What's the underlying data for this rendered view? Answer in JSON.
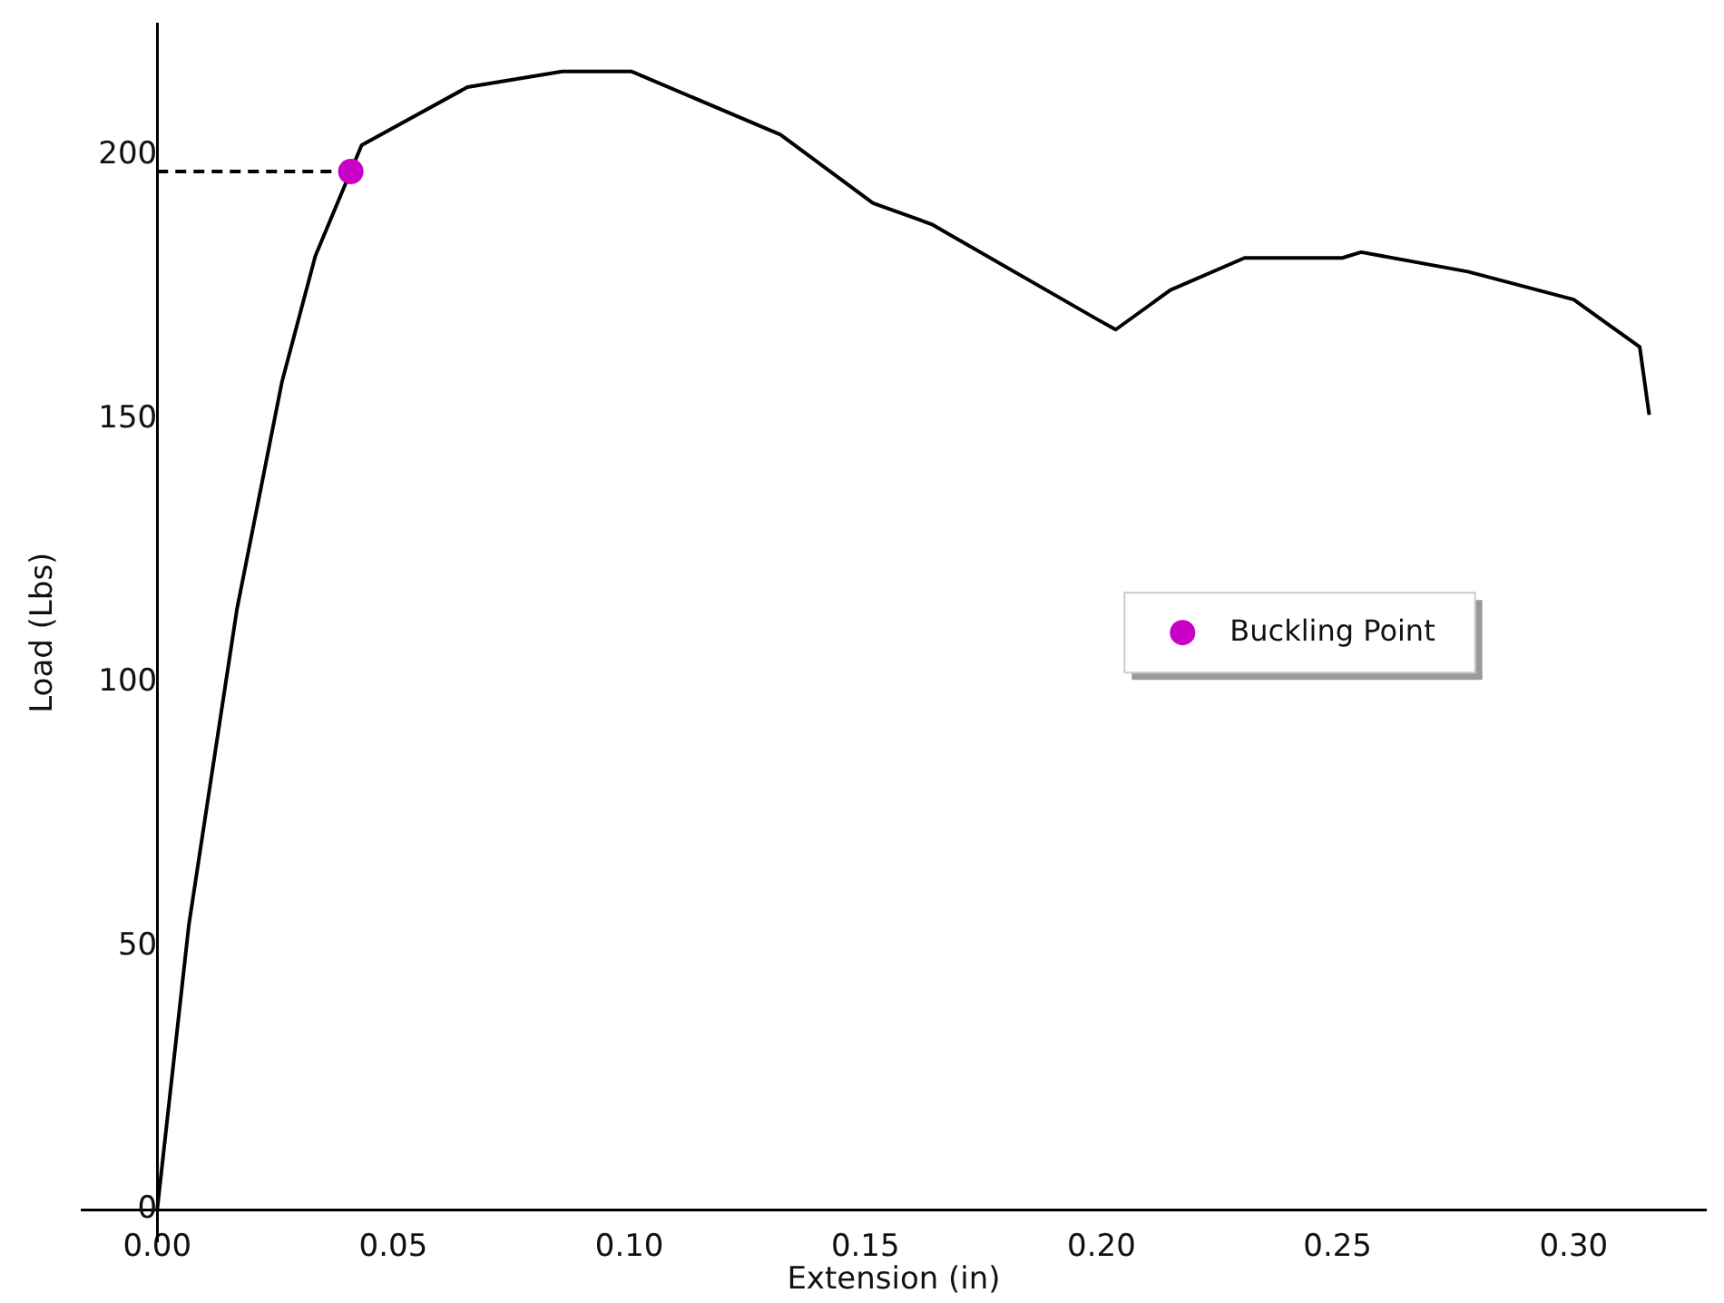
{
  "chart_data": {
    "type": "line",
    "xlabel": "Extension (in)",
    "ylabel": "Load (Lbs)",
    "xlim": [
      -0.016,
      0.328
    ],
    "ylim": [
      -6,
      225
    ],
    "xticks": [
      {
        "value": 0,
        "label": "0.00"
      },
      {
        "value": 0.05,
        "label": "0.05"
      },
      {
        "value": 0.1,
        "label": "0.10"
      },
      {
        "value": 0.15,
        "label": "0.15"
      },
      {
        "value": 0.2,
        "label": "0.20"
      },
      {
        "value": 0.25,
        "label": "0.25"
      },
      {
        "value": 0.3,
        "label": "0.30"
      }
    ],
    "yticks": [
      0,
      50,
      100,
      150,
      200
    ],
    "legend": "center right",
    "series": [
      {
        "color": "#000000",
        "marker": "none",
        "line_style": "solid",
        "x": [
          0,
          0.0067,
          0.0106,
          0.0169,
          0.0264,
          0.0335,
          0.0433,
          0.0657,
          0.0858,
          0.1004,
          0.132,
          0.1516,
          0.164,
          0.199,
          0.203,
          0.2146,
          0.2303,
          0.251,
          0.255,
          0.2776,
          0.3,
          0.314,
          0.316
        ],
        "values": [
          0,
          54,
          77,
          114,
          157,
          181,
          202,
          213,
          216,
          216,
          204,
          191,
          187,
          169,
          167,
          174.5,
          180.6,
          180.6,
          181.7,
          178,
          172.7,
          163.7,
          150.8
        ]
      },
      {
        "type": "line",
        "color": "#000000",
        "marker": "none",
        "line_style": "dashed",
        "x": [
          0,
          0.041
        ],
        "values": [
          197,
          197
        ]
      },
      {
        "type": "scatter",
        "name": "Buckling Point",
        "color": "#c800c8",
        "marker": "circle",
        "x": [
          0.041
        ],
        "values": [
          197
        ]
      }
    ]
  }
}
